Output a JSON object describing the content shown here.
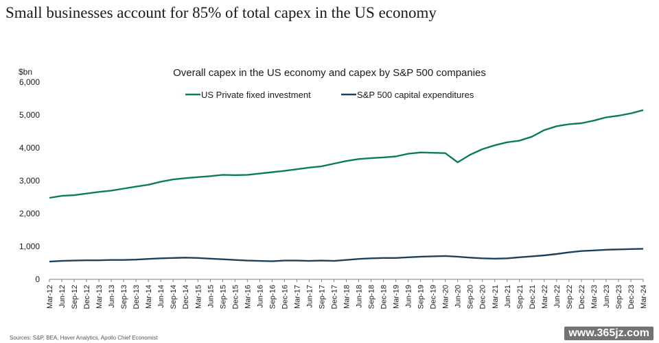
{
  "headline": "Small businesses account for 85% of total capex in the US economy",
  "source_note": "Sources: S&P, BEA, Haver Analytics, Apollo Chief Economist",
  "watermark": "www.365jz.com",
  "colors": {
    "series1": "#0a7c5a",
    "series2": "#1c3f5c",
    "axis": "#7f7f7f",
    "text": "#1a1a1a"
  },
  "chart_data": {
    "type": "line",
    "title": "Overall capex in the US economy and capex by S&P 500 companies",
    "unit_label": "$bn",
    "xlabel": "",
    "ylabel": "",
    "ylim": [
      0,
      6000
    ],
    "yticks": [
      0,
      1000,
      2000,
      3000,
      4000,
      5000,
      6000
    ],
    "ytick_labels": [
      "0",
      "1,000",
      "2,000",
      "3,000",
      "4,000",
      "5,000",
      "6,000"
    ],
    "grid": false,
    "legend_position": "top-left",
    "categories": [
      "Mar-12",
      "Jun-12",
      "Sep-12",
      "Dec-12",
      "Mar-13",
      "Jun-13",
      "Sep-13",
      "Dec-13",
      "Mar-14",
      "Jun-14",
      "Sep-14",
      "Dec-14",
      "Mar-15",
      "Jun-15",
      "Sep-15",
      "Dec-15",
      "Mar-16",
      "Jun-16",
      "Sep-16",
      "Dec-16",
      "Mar-17",
      "Jun-17",
      "Sep-17",
      "Dec-17",
      "Mar-18",
      "Jun-18",
      "Sep-18",
      "Dec-18",
      "Mar-19",
      "Jun-19",
      "Sep-19",
      "Dec-19",
      "Mar-20",
      "Jun-20",
      "Sep-20",
      "Dec-20",
      "Mar-21",
      "Jun-21",
      "Sep-21",
      "Dec-21",
      "Mar-22",
      "Jun-22",
      "Sep-22",
      "Dec-22",
      "Mar-23",
      "Jun-23",
      "Sep-23",
      "Dec-23",
      "Mar-24"
    ],
    "series": [
      {
        "name": "US Private fixed investment",
        "color": "#0a7c5a",
        "values": [
          2480,
          2540,
          2560,
          2610,
          2660,
          2700,
          2760,
          2820,
          2880,
          2970,
          3040,
          3080,
          3110,
          3140,
          3180,
          3170,
          3180,
          3220,
          3260,
          3300,
          3350,
          3400,
          3440,
          3520,
          3600,
          3660,
          3690,
          3710,
          3740,
          3820,
          3860,
          3850,
          3840,
          3560,
          3790,
          3960,
          4080,
          4170,
          4220,
          4340,
          4540,
          4660,
          4720,
          4750,
          4830,
          4930,
          4980,
          5050,
          5150
        ]
      },
      {
        "name": "S&P 500 capital expenditures",
        "color": "#1c3f5c",
        "values": [
          540,
          560,
          570,
          580,
          580,
          590,
          590,
          600,
          620,
          640,
          650,
          660,
          650,
          630,
          610,
          590,
          570,
          560,
          550,
          570,
          570,
          560,
          570,
          560,
          590,
          620,
          640,
          650,
          650,
          670,
          690,
          700,
          710,
          690,
          660,
          640,
          630,
          640,
          670,
          700,
          730,
          770,
          820,
          860,
          880,
          900,
          910,
          920,
          930
        ]
      }
    ]
  }
}
